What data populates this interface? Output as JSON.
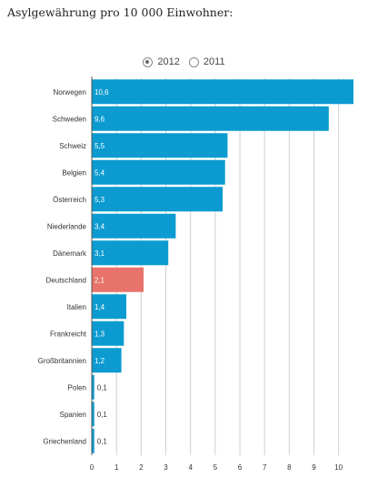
{
  "title": "Asylgewährung pro 10 000 Einwohner:",
  "year_toggle": {
    "options": [
      "2012",
      "2011"
    ],
    "selected": "2012"
  },
  "colors": {
    "bar": "#0b9bd0",
    "highlight": "#e8736b",
    "grid": "#cfcfcf",
    "axis": "#555555",
    "text": "#333333",
    "value_text": "#ffffff",
    "value_text_outside": "#333333"
  },
  "chart_data": {
    "type": "bar",
    "orientation": "horizontal",
    "title": "Asylgewährung pro 10 000 Einwohner:",
    "categories": [
      "Norwegen",
      "Schweden",
      "Schweiz",
      "Belgien",
      "Österreich",
      "Niederlande",
      "Dänemark",
      "Deutschland",
      "Italien",
      "Frankreicht",
      "Großbritannien",
      "Polen",
      "Spanien",
      "Griechenland"
    ],
    "values": [
      10.6,
      9.6,
      5.5,
      5.4,
      5.3,
      3.4,
      3.1,
      2.1,
      1.4,
      1.3,
      1.2,
      0.1,
      0.1,
      0.1
    ],
    "value_labels": [
      "10,6",
      "9,6",
      "5,5",
      "5,4",
      "5,3",
      "3,4",
      "3,1",
      "2,1",
      "1,4",
      "1,3",
      "1,2",
      "0,1",
      "0,1",
      "0,1"
    ],
    "highlight": "Deutschland",
    "xlim": [
      0,
      10.6
    ],
    "xticks": [
      0,
      1,
      2,
      3,
      4,
      5,
      6,
      7,
      8,
      9,
      10
    ],
    "grid": true,
    "xlabel": "",
    "ylabel": ""
  }
}
